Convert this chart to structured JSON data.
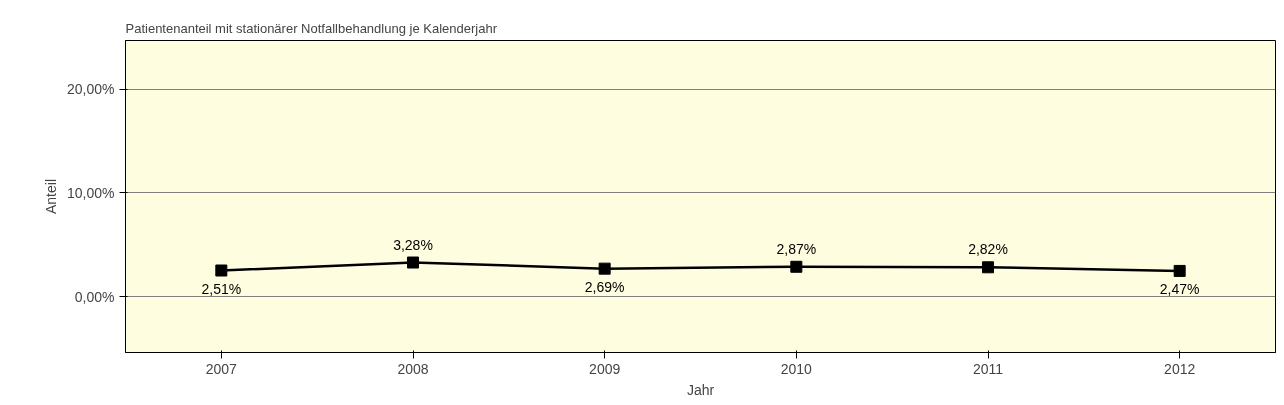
{
  "chart_data": {
    "type": "line",
    "title": "Patientenanteil mit stationärer Notfallbehandlung je Kalenderjahr",
    "xlabel": "Jahr",
    "ylabel": "Anteil",
    "categories": [
      "2007",
      "2008",
      "2009",
      "2010",
      "2011",
      "2012"
    ],
    "series": [
      {
        "color": "#000000",
        "values": [
          2.51,
          3.28,
          2.69,
          2.87,
          2.82,
          2.47
        ],
        "value_labels": [
          "2,51%",
          "3,28%",
          "2,69%",
          "2,87%",
          "2,82%",
          "2,47%"
        ]
      }
    ],
    "ylim": [
      -5.4,
      24.7
    ],
    "yticks": [
      {
        "value": 0,
        "label": "0,00%"
      },
      {
        "value": 10,
        "label": "10,00%"
      },
      {
        "value": 20,
        "label": "20,00%"
      }
    ],
    "grid": "y",
    "marker": "square",
    "line_style": "solid"
  }
}
